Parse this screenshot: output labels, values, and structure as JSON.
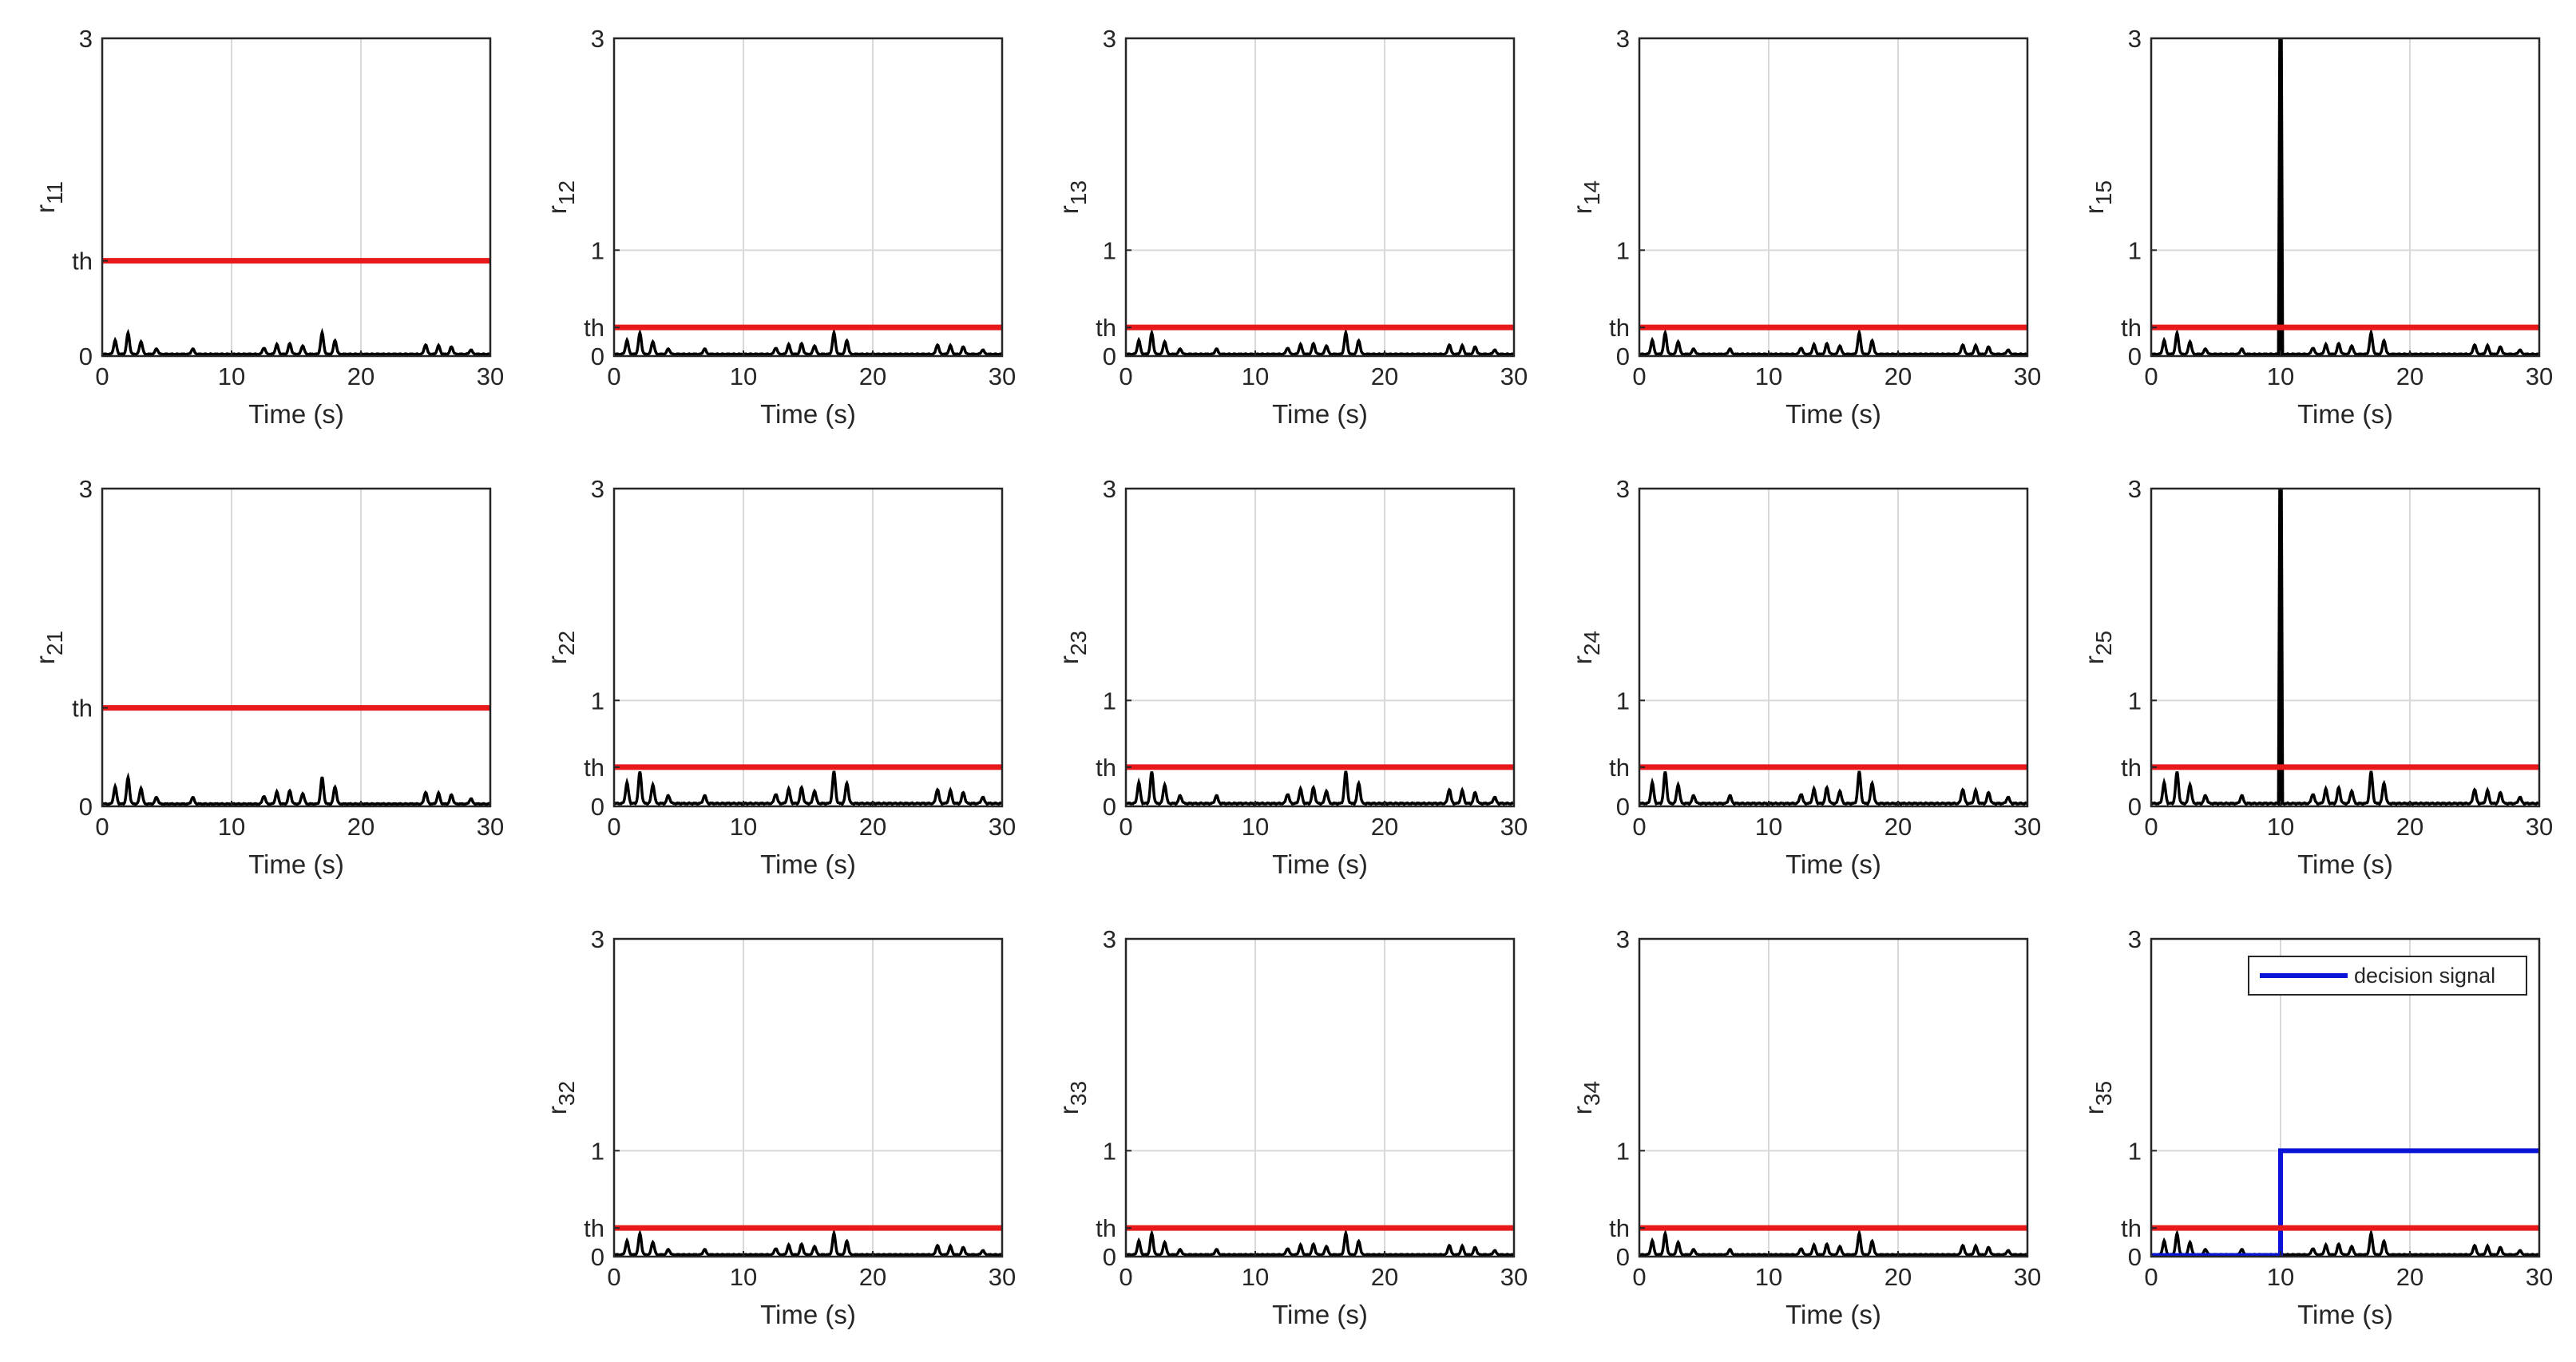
{
  "chart_data": {
    "type": "line",
    "grid": true,
    "layout": "3x5 grid of subplots",
    "xlabel": "Time (s)",
    "xlim": [
      0,
      30
    ],
    "x_ticks": [
      "0",
      "10",
      "20",
      "30"
    ],
    "threshold_tick_label": "th",
    "legend": {
      "text": "decision signal",
      "placement": "top-right",
      "panel": "r35"
    },
    "colors": {
      "residual": "#000000",
      "threshold": "#e8191b",
      "decision": "#0a14d6",
      "grid": "#d9d9d9"
    },
    "residual_peaks": [
      {
        "t": 1.0,
        "v": 0.13
      },
      {
        "t": 2.0,
        "v": 0.2
      },
      {
        "t": 3.0,
        "v": 0.12
      },
      {
        "t": 4.2,
        "v": 0.05
      },
      {
        "t": 7.0,
        "v": 0.05
      },
      {
        "t": 12.5,
        "v": 0.06
      },
      {
        "t": 13.5,
        "v": 0.09
      },
      {
        "t": 14.5,
        "v": 0.1
      },
      {
        "t": 15.5,
        "v": 0.08
      },
      {
        "t": 17.0,
        "v": 0.2
      },
      {
        "t": 18.0,
        "v": 0.13
      },
      {
        "t": 25.0,
        "v": 0.09
      },
      {
        "t": 26.0,
        "v": 0.08
      },
      {
        "t": 27.0,
        "v": 0.07
      },
      {
        "t": 28.5,
        "v": 0.04
      }
    ],
    "panels": [
      {
        "id": "r11",
        "row": 0,
        "col": 0,
        "label": "r",
        "sub": "11",
        "ylim": [
          0,
          3
        ],
        "y_ticks": [
          {
            "v": 0,
            "t": "0"
          },
          {
            "v": 0.9,
            "t": "th"
          },
          {
            "v": 3,
            "t": "3"
          }
        ],
        "threshold": 0.9,
        "peak_scale": 1.0,
        "fault_spike": null,
        "decision": null
      },
      {
        "id": "r12",
        "row": 0,
        "col": 1,
        "label": "r",
        "sub": "12",
        "ylim": [
          0,
          3
        ],
        "y_ticks": [
          {
            "v": 0,
            "t": "0"
          },
          {
            "v": 0.27,
            "t": "th"
          },
          {
            "v": 1,
            "t": "1"
          },
          {
            "v": 3,
            "t": "3"
          }
        ],
        "threshold": 0.27,
        "peak_scale": 1.0,
        "fault_spike": null,
        "decision": null
      },
      {
        "id": "r13",
        "row": 0,
        "col": 2,
        "label": "r",
        "sub": "13",
        "ylim": [
          0,
          3
        ],
        "y_ticks": [
          {
            "v": 0,
            "t": "0"
          },
          {
            "v": 0.27,
            "t": "th"
          },
          {
            "v": 1,
            "t": "1"
          },
          {
            "v": 3,
            "t": "3"
          }
        ],
        "threshold": 0.27,
        "peak_scale": 1.0,
        "fault_spike": null,
        "decision": null
      },
      {
        "id": "r14",
        "row": 0,
        "col": 3,
        "label": "r",
        "sub": "14",
        "ylim": [
          0,
          3
        ],
        "y_ticks": [
          {
            "v": 0,
            "t": "0"
          },
          {
            "v": 0.27,
            "t": "th"
          },
          {
            "v": 1,
            "t": "1"
          },
          {
            "v": 3,
            "t": "3"
          }
        ],
        "threshold": 0.27,
        "peak_scale": 1.0,
        "fault_spike": null,
        "decision": null
      },
      {
        "id": "r15",
        "row": 0,
        "col": 4,
        "label": "r",
        "sub": "15",
        "ylim": [
          0,
          3
        ],
        "y_ticks": [
          {
            "v": 0,
            "t": "0"
          },
          {
            "v": 0.27,
            "t": "th"
          },
          {
            "v": 1,
            "t": "1"
          },
          {
            "v": 3,
            "t": "3"
          }
        ],
        "threshold": 0.27,
        "peak_scale": 1.0,
        "fault_spike": {
          "t": 10,
          "v": 3
        },
        "decision": null
      },
      {
        "id": "r21",
        "row": 1,
        "col": 0,
        "label": "r",
        "sub": "21",
        "ylim": [
          0,
          3
        ],
        "y_ticks": [
          {
            "v": 0,
            "t": "0"
          },
          {
            "v": 0.93,
            "t": "th"
          },
          {
            "v": 3,
            "t": "3"
          }
        ],
        "threshold": 0.93,
        "peak_scale": 1.25,
        "fault_spike": null,
        "decision": null
      },
      {
        "id": "r22",
        "row": 1,
        "col": 1,
        "label": "r",
        "sub": "22",
        "ylim": [
          0,
          3
        ],
        "y_ticks": [
          {
            "v": 0,
            "t": "0"
          },
          {
            "v": 0.37,
            "t": "th"
          },
          {
            "v": 1,
            "t": "1"
          },
          {
            "v": 3,
            "t": "3"
          }
        ],
        "threshold": 0.37,
        "peak_scale": 1.5,
        "fault_spike": null,
        "decision": null
      },
      {
        "id": "r23",
        "row": 1,
        "col": 2,
        "label": "r",
        "sub": "23",
        "ylim": [
          0,
          3
        ],
        "y_ticks": [
          {
            "v": 0,
            "t": "0"
          },
          {
            "v": 0.37,
            "t": "th"
          },
          {
            "v": 1,
            "t": "1"
          },
          {
            "v": 3,
            "t": "3"
          }
        ],
        "threshold": 0.37,
        "peak_scale": 1.5,
        "fault_spike": null,
        "decision": null
      },
      {
        "id": "r24",
        "row": 1,
        "col": 3,
        "label": "r",
        "sub": "24",
        "ylim": [
          0,
          3
        ],
        "y_ticks": [
          {
            "v": 0,
            "t": "0"
          },
          {
            "v": 0.37,
            "t": "th"
          },
          {
            "v": 1,
            "t": "1"
          },
          {
            "v": 3,
            "t": "3"
          }
        ],
        "threshold": 0.37,
        "peak_scale": 1.5,
        "fault_spike": null,
        "decision": null
      },
      {
        "id": "r25",
        "row": 1,
        "col": 4,
        "label": "r",
        "sub": "25",
        "ylim": [
          0,
          3
        ],
        "y_ticks": [
          {
            "v": 0,
            "t": "0"
          },
          {
            "v": 0.37,
            "t": "th"
          },
          {
            "v": 1,
            "t": "1"
          },
          {
            "v": 3,
            "t": "3"
          }
        ],
        "threshold": 0.37,
        "peak_scale": 1.5,
        "fault_spike": {
          "t": 10,
          "v": 3
        },
        "decision": null
      },
      {
        "id": "r32",
        "row": 2,
        "col": 1,
        "label": "r",
        "sub": "32",
        "ylim": [
          0,
          3
        ],
        "y_ticks": [
          {
            "v": 0,
            "t": "0"
          },
          {
            "v": 0.27,
            "t": "th"
          },
          {
            "v": 1,
            "t": "1"
          },
          {
            "v": 3,
            "t": "3"
          }
        ],
        "threshold": 0.27,
        "peak_scale": 1.0,
        "fault_spike": null,
        "decision": null
      },
      {
        "id": "r33",
        "row": 2,
        "col": 2,
        "label": "r",
        "sub": "33",
        "ylim": [
          0,
          3
        ],
        "y_ticks": [
          {
            "v": 0,
            "t": "0"
          },
          {
            "v": 0.27,
            "t": "th"
          },
          {
            "v": 1,
            "t": "1"
          },
          {
            "v": 3,
            "t": "3"
          }
        ],
        "threshold": 0.27,
        "peak_scale": 1.0,
        "fault_spike": null,
        "decision": null
      },
      {
        "id": "r34",
        "row": 2,
        "col": 3,
        "label": "r",
        "sub": "34",
        "ylim": [
          0,
          3
        ],
        "y_ticks": [
          {
            "v": 0,
            "t": "0"
          },
          {
            "v": 0.27,
            "t": "th"
          },
          {
            "v": 1,
            "t": "1"
          },
          {
            "v": 3,
            "t": "3"
          }
        ],
        "threshold": 0.27,
        "peak_scale": 1.0,
        "fault_spike": null,
        "decision": null
      },
      {
        "id": "r35",
        "row": 2,
        "col": 4,
        "label": "r",
        "sub": "35",
        "ylim": [
          0,
          3
        ],
        "y_ticks": [
          {
            "v": 0,
            "t": "0"
          },
          {
            "v": 0.27,
            "t": "th"
          },
          {
            "v": 1,
            "t": "1"
          },
          {
            "v": 3,
            "t": "3"
          }
        ],
        "threshold": 0.27,
        "peak_scale": 1.0,
        "fault_spike": null,
        "decision": {
          "t_switch": 10,
          "low": 0,
          "high": 1
        }
      }
    ]
  }
}
